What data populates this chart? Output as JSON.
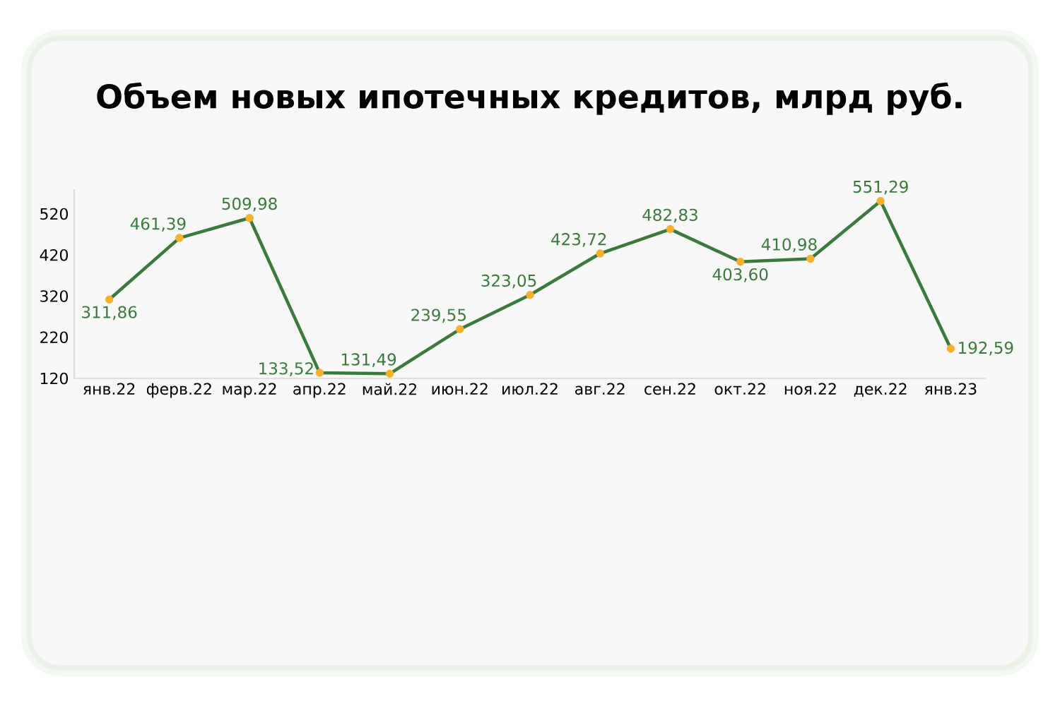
{
  "chart_data": {
    "type": "line",
    "title": "Объем новых ипотечных кредитов, млрд руб.",
    "categories": [
      "янв.22",
      "ферв.22",
      "мар.22",
      "апр.22",
      "май.22",
      "июн.22",
      "июл.22",
      "авг.22",
      "сен.22",
      "окт.22",
      "ноя.22",
      "дек.22",
      "янв.23"
    ],
    "series": [
      {
        "color": "#3a7a3c",
        "colors": [
          "#f7b12b",
          "#f7b12b",
          "#f7b12b",
          "#f7b12b",
          "#f7b12b",
          "#f7b12b",
          "#f7b12b",
          "#f7b12b",
          "#f7b12b",
          "#f7b12b",
          "#f7b12b",
          "#f7b12b",
          "#f7b12b"
        ],
        "values": [
          311.86,
          461.39,
          509.98,
          133.52,
          131.49,
          239.55,
          323.05,
          423.72,
          482.83,
          403.6,
          410.98,
          551.29,
          192.59
        ],
        "value_labels": [
          "311,86",
          "461,39",
          "509,98",
          "133,52",
          "131,49",
          "239,55",
          "323,05",
          "423,72",
          "482,83",
          "403,60",
          "410,98",
          "551,29",
          "192,59"
        ]
      }
    ],
    "ylim": [
      120,
      580
    ],
    "yticks": [
      120,
      220,
      320,
      420,
      520
    ],
    "marker": "circle",
    "line_style": "solid",
    "legend": false,
    "grid": false
  }
}
